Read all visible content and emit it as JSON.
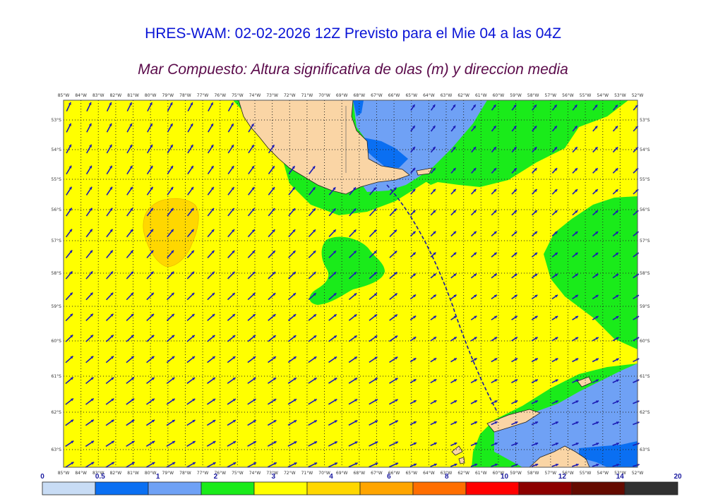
{
  "header": {
    "title": "HRES-WAM: 02-02-2026 12Z Previsto para el Mie 04 a las 04Z",
    "subtitle": "Mar Compuesto: Altura significativa de olas (m) y direccion media"
  },
  "map": {
    "longitudes": [
      "85°W",
      "84°W",
      "83°W",
      "82°W",
      "81°W",
      "80°W",
      "79°W",
      "78°W",
      "77°W",
      "76°W",
      "75°W",
      "74°W",
      "73°W",
      "72°W",
      "71°W",
      "70°W",
      "69°W",
      "68°W",
      "67°W",
      "66°W",
      "65°W",
      "64°W",
      "63°W",
      "62°W",
      "61°W",
      "60°W",
      "59°W",
      "58°W",
      "57°W",
      "56°W",
      "55°W",
      "54°W",
      "53°W",
      "52°W"
    ],
    "latitudes": [
      "53°S",
      "54°S",
      "55°S",
      "56°S",
      "57°S",
      "58°S",
      "59°S",
      "60°S",
      "61°S",
      "62°S",
      "63°S"
    ],
    "region_colors": {
      "ocean_3_4": "#ffff00",
      "ocean_4_6": "#ffd700",
      "ocean_2_3": "#1aeb1a",
      "ocean_1_2": "#6fa1f5",
      "ocean_05_1": "#0a6ff2",
      "land": "#fad5a5",
      "arrow": "#1a1ab4"
    }
  },
  "colorbar": {
    "ticks": [
      "0",
      "0.5",
      "1",
      "2",
      "3",
      "4",
      "6",
      "8",
      "10",
      "12",
      "14",
      "20"
    ],
    "colors": [
      "#c8dcf5",
      "#0a6ff2",
      "#6fa1f5",
      "#1aeb1a",
      "#ffff00",
      "#ffd700",
      "#ffa500",
      "#ff6e00",
      "#ff0000",
      "#8c0000",
      "#640a00",
      "#303030"
    ]
  }
}
